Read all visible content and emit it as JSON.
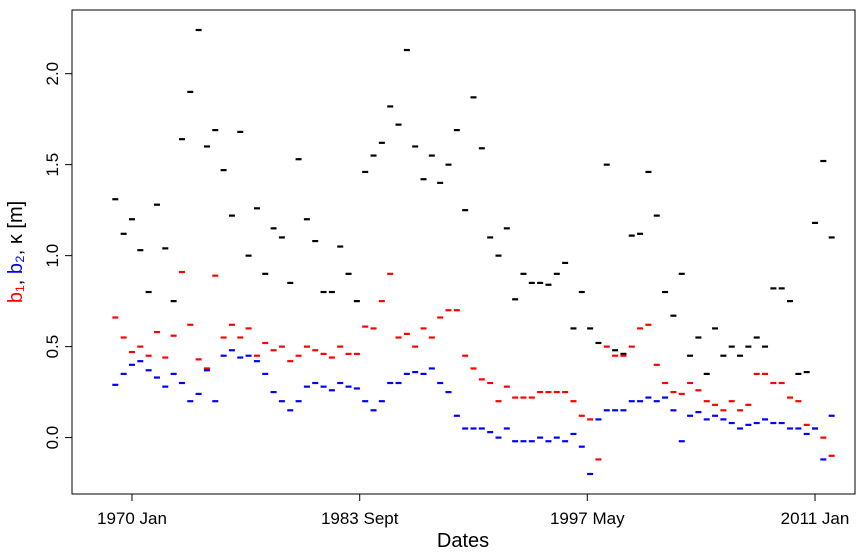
{
  "chart_data": {
    "type": "scatter",
    "xlabel": "Dates",
    "ylabel": [
      {
        "text": "b₁",
        "color": "#ff0000"
      },
      {
        "text": ", ",
        "color": "#000000"
      },
      {
        "text": "b₂",
        "color": "#0000ff"
      },
      {
        "text": ", κ [m]",
        "color": "#000000"
      }
    ],
    "xlim": [
      1966.4,
      2013.4
    ],
    "ylim": [
      -0.31,
      2.35
    ],
    "xticks": [
      {
        "value": 1970.0,
        "label": "1970 Jan"
      },
      {
        "value": 1983.67,
        "label": "1983 Sept"
      },
      {
        "value": 1997.33,
        "label": "1997 May"
      },
      {
        "value": 2011.0,
        "label": "2011 Jan"
      }
    ],
    "yticks": [
      {
        "value": 0,
        "label": "0.0"
      },
      0.5,
      {
        "value": 1,
        "label": "1.0"
      },
      1.5,
      {
        "value": 2,
        "label": "2.0"
      }
    ],
    "x": [
      1969.0,
      1969.5,
      1970.0,
      1970.5,
      1971.0,
      1971.5,
      1972.0,
      1972.5,
      1973.0,
      1973.5,
      1974.0,
      1974.5,
      1975.0,
      1975.5,
      1976.0,
      1976.5,
      1977.0,
      1977.5,
      1978.0,
      1978.5,
      1979.0,
      1979.5,
      1980.0,
      1980.5,
      1981.0,
      1981.5,
      1982.0,
      1982.5,
      1983.0,
      1983.5,
      1984.0,
      1984.5,
      1985.0,
      1985.5,
      1986.0,
      1986.5,
      1987.0,
      1987.5,
      1988.0,
      1988.5,
      1989.0,
      1989.5,
      1990.0,
      1990.5,
      1991.0,
      1991.5,
      1992.0,
      1992.5,
      1993.0,
      1993.5,
      1994.0,
      1994.5,
      1995.0,
      1995.5,
      1996.0,
      1996.5,
      1997.0,
      1997.5,
      1998.0,
      1998.5,
      1999.0,
      1999.5,
      2000.0,
      2000.5,
      2001.0,
      2001.5,
      2002.0,
      2002.5,
      2003.0,
      2003.5,
      2004.0,
      2004.5,
      2005.0,
      2005.5,
      2006.0,
      2006.5,
      2007.0,
      2007.5,
      2008.0,
      2008.5,
      2009.0,
      2009.5,
      2010.0,
      2010.5,
      2011.0,
      2011.5,
      2012.0
    ],
    "series": [
      {
        "color": "#000000",
        "values": [
          1.31,
          1.12,
          1.2,
          1.03,
          0.8,
          1.28,
          1.04,
          0.75,
          1.64,
          1.9,
          2.24,
          1.6,
          1.69,
          1.47,
          1.22,
          1.68,
          1.0,
          1.26,
          0.9,
          1.15,
          1.1,
          0.85,
          1.53,
          1.2,
          1.08,
          0.8,
          0.8,
          1.05,
          0.9,
          0.75,
          1.46,
          1.55,
          1.62,
          1.82,
          1.72,
          2.13,
          1.6,
          1.42,
          1.55,
          1.4,
          1.5,
          1.69,
          1.25,
          1.87,
          1.59,
          1.1,
          1.0,
          1.15,
          0.76,
          0.9,
          0.85,
          0.85,
          0.84,
          0.9,
          0.96,
          0.6,
          0.8,
          0.6,
          0.52,
          1.5,
          0.48,
          0.46,
          1.11,
          1.12,
          1.46,
          1.22,
          0.8,
          0.67,
          0.9,
          0.45,
          0.55,
          0.35,
          0.6,
          0.45,
          0.5,
          0.45,
          0.5,
          0.55,
          0.5,
          0.82,
          0.82,
          0.75,
          0.35,
          0.36,
          1.18,
          1.52,
          1.1
        ]
      },
      {
        "color": "#ff0000",
        "values": [
          0.66,
          0.55,
          0.47,
          0.5,
          0.45,
          0.58,
          0.44,
          0.56,
          0.91,
          0.62,
          0.43,
          0.38,
          0.89,
          0.55,
          0.62,
          0.55,
          0.6,
          0.45,
          0.52,
          0.48,
          0.5,
          0.42,
          0.45,
          0.5,
          0.48,
          0.46,
          0.44,
          0.5,
          0.46,
          0.46,
          0.61,
          0.6,
          0.75,
          0.9,
          0.55,
          0.57,
          0.5,
          0.6,
          0.55,
          0.66,
          0.7,
          0.7,
          0.45,
          0.38,
          0.32,
          0.3,
          0.2,
          0.28,
          0.22,
          0.22,
          0.22,
          0.25,
          0.25,
          0.25,
          0.25,
          0.2,
          0.12,
          0.1,
          -0.12,
          0.5,
          0.45,
          0.45,
          0.5,
          0.6,
          0.62,
          0.4,
          0.3,
          0.25,
          0.24,
          0.3,
          0.26,
          0.2,
          0.18,
          0.15,
          0.2,
          0.15,
          0.18,
          0.35,
          0.35,
          0.3,
          0.3,
          0.22,
          0.2,
          0.07,
          0.05,
          0.0,
          -0.1
        ]
      },
      {
        "color": "#0000ff",
        "values": [
          0.29,
          0.35,
          0.4,
          0.42,
          0.37,
          0.33,
          0.28,
          0.35,
          0.3,
          0.2,
          0.24,
          0.37,
          0.2,
          0.45,
          0.48,
          0.44,
          0.45,
          0.42,
          0.35,
          0.25,
          0.2,
          0.15,
          0.2,
          0.28,
          0.3,
          0.28,
          0.26,
          0.3,
          0.28,
          0.27,
          0.2,
          0.15,
          0.2,
          0.3,
          0.3,
          0.35,
          0.36,
          0.35,
          0.38,
          0.3,
          0.25,
          0.12,
          0.05,
          0.05,
          0.05,
          0.03,
          0.0,
          0.05,
          -0.02,
          -0.02,
          -0.02,
          0.0,
          -0.02,
          0.0,
          -0.02,
          0.02,
          -0.05,
          -0.2,
          0.1,
          0.15,
          0.15,
          0.15,
          0.2,
          0.2,
          0.22,
          0.2,
          0.22,
          0.15,
          -0.02,
          0.12,
          0.14,
          0.1,
          0.12,
          0.1,
          0.08,
          0.05,
          0.07,
          0.08,
          0.1,
          0.08,
          0.08,
          0.05,
          0.05,
          0.02,
          0.05,
          -0.12,
          0.12
        ]
      }
    ]
  }
}
